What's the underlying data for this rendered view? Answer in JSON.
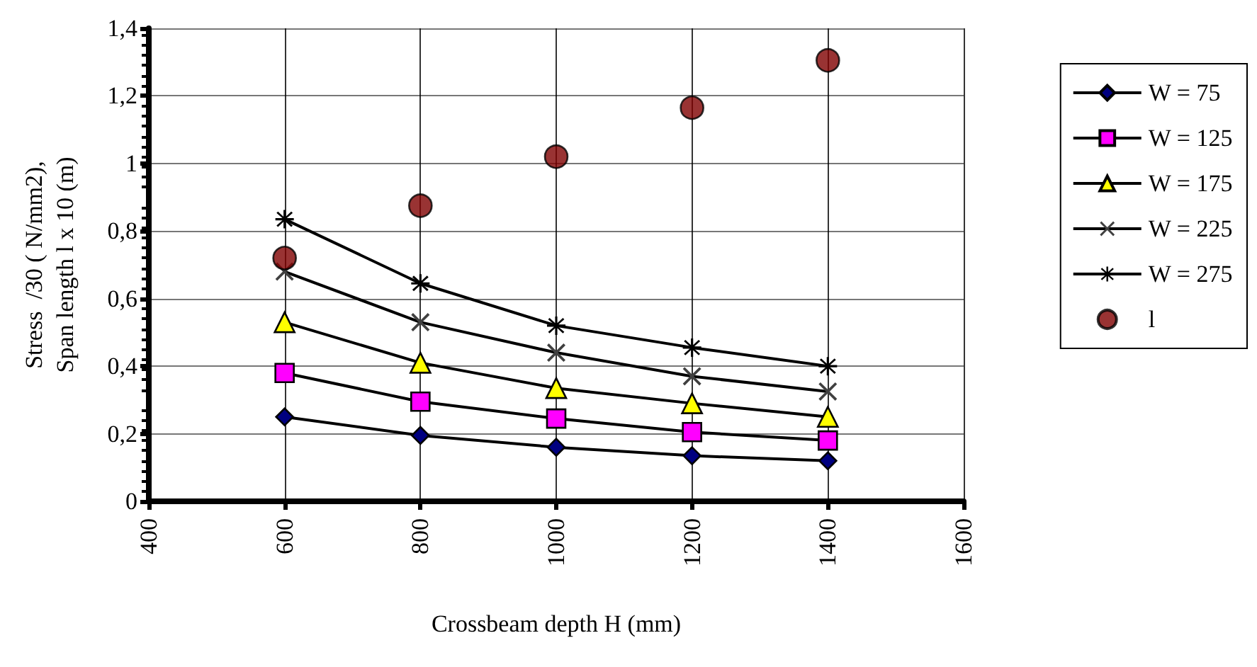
{
  "chart_data": {
    "type": "line",
    "xlabel": "Crossbeam depth H (mm)",
    "ylabel": "Stress  /30 ( N/mm2),\nSpan length l x 10 (m)",
    "x": [
      600,
      800,
      1000,
      1200,
      1400
    ],
    "series": [
      {
        "name": "W = 75",
        "color": "#000080",
        "marker": "diamond",
        "values": [
          0.25,
          0.195,
          0.16,
          0.135,
          0.12
        ]
      },
      {
        "name": "W = 125",
        "color": "#ff00ff",
        "marker": "square",
        "values": [
          0.38,
          0.295,
          0.245,
          0.205,
          0.18
        ]
      },
      {
        "name": "W = 175",
        "color": "#ffff00",
        "marker": "triangle",
        "values": [
          0.53,
          0.41,
          0.335,
          0.29,
          0.25
        ]
      },
      {
        "name": "W = 225",
        "color": "#404040",
        "marker": "cross",
        "values": [
          0.68,
          0.53,
          0.44,
          0.37,
          0.325
        ]
      },
      {
        "name": "W = 275",
        "color": "#000000",
        "marker": "star",
        "values": [
          0.835,
          0.645,
          0.52,
          0.455,
          0.4
        ]
      },
      {
        "name": "l",
        "type": "scatter",
        "color": "#800000",
        "marker": "circle",
        "values": [
          0.72,
          0.875,
          1.02,
          1.165,
          1.305
        ]
      }
    ],
    "xlim": [
      400,
      1600
    ],
    "xticks": [
      400,
      600,
      800,
      1000,
      1200,
      1400,
      1600
    ],
    "ylim": [
      0,
      1.4
    ],
    "yticks": [
      0,
      {
        "value": 0.2,
        "label": "0,2"
      },
      {
        "value": 0.4,
        "label": "0,4"
      },
      {
        "value": 0.6,
        "label": "0,6"
      },
      {
        "value": 0.8,
        "label": "0,8"
      },
      1,
      {
        "value": 1.2,
        "label": "1,2"
      },
      {
        "value": 1.4,
        "label": "1,4"
      }
    ],
    "grid": true,
    "legend": "right"
  }
}
